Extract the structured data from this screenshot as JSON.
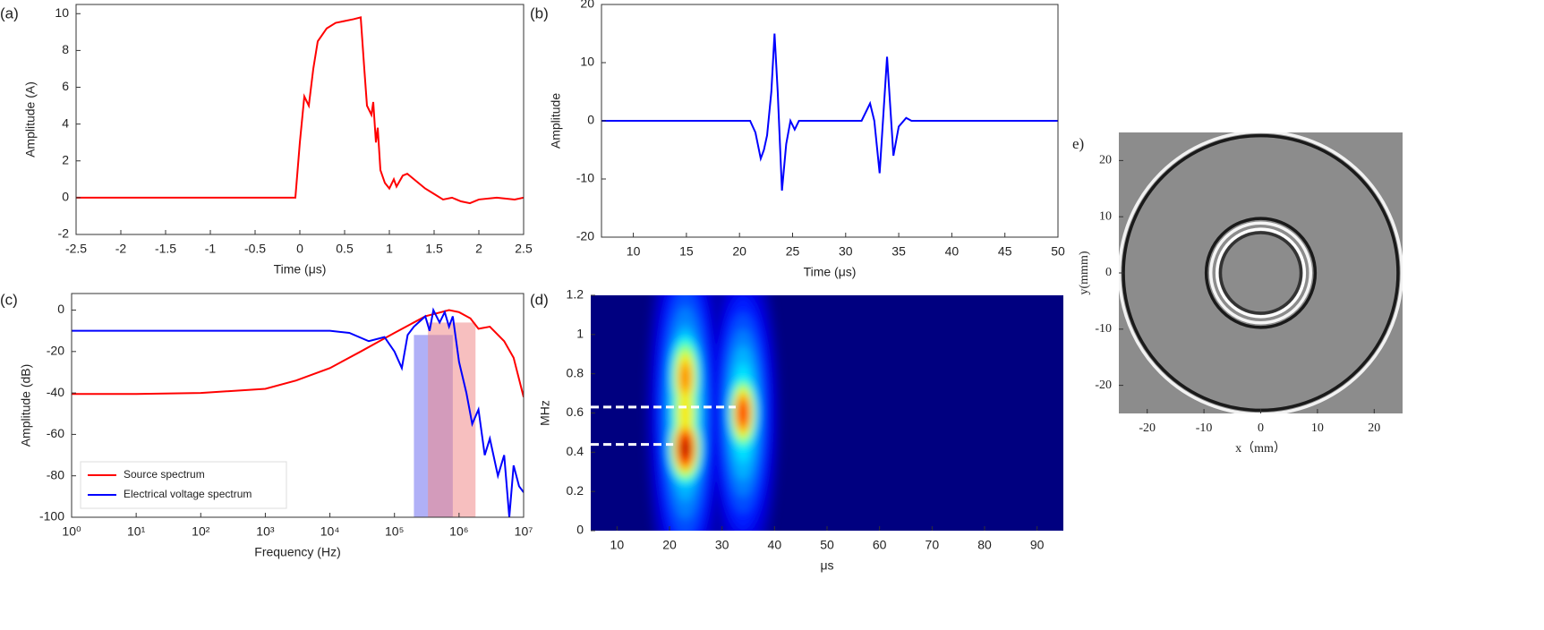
{
  "chart_data": [
    {
      "type": "line",
      "label": "(a)",
      "xlabel": "Time (μs)",
      "ylabel": "Amplitude (A)",
      "xlim": [
        -2.5,
        2.5
      ],
      "ylim": [
        -2,
        10.5
      ],
      "xticks": [
        -2.5,
        -2,
        -1.5,
        -1,
        -0.5,
        0,
        0.5,
        1,
        1.5,
        2,
        2.5
      ],
      "yticks": [
        -2,
        0,
        2,
        4,
        6,
        8,
        10
      ],
      "series": [
        {
          "color": "#ff0000",
          "x": [
            -2.5,
            -0.05,
            0,
            0.05,
            0.1,
            0.15,
            0.2,
            0.3,
            0.4,
            0.5,
            0.6,
            0.68,
            0.72,
            0.75,
            0.8,
            0.82,
            0.85,
            0.87,
            0.9,
            0.95,
            1.0,
            1.05,
            1.08,
            1.15,
            1.2,
            1.3,
            1.4,
            1.5,
            1.6,
            1.7,
            1.8,
            1.9,
            2.0,
            2.2,
            2.4,
            2.5
          ],
          "values": [
            0,
            0,
            3,
            5.5,
            5,
            7,
            8.5,
            9.2,
            9.5,
            9.6,
            9.7,
            9.8,
            7,
            5,
            4.5,
            5.2,
            3,
            3.8,
            1.5,
            0.8,
            0.5,
            1.0,
            0.6,
            1.2,
            1.3,
            0.9,
            0.5,
            0.2,
            -0.1,
            0,
            -0.2,
            -0.3,
            -0.1,
            0,
            -0.1,
            0
          ]
        }
      ]
    },
    {
      "type": "line",
      "label": "(b)",
      "xlabel": "Time (μs)",
      "ylabel": "Amplitude",
      "xlim": [
        7,
        50
      ],
      "ylim": [
        -20,
        20
      ],
      "xticks": [
        10,
        15,
        20,
        25,
        30,
        35,
        40,
        45,
        50
      ],
      "yticks": [
        -20,
        -10,
        0,
        10,
        20
      ],
      "series": [
        {
          "color": "#0000ff",
          "x": [
            7,
            21,
            21.5,
            22,
            22.3,
            22.6,
            23,
            23.3,
            23.6,
            24,
            24.4,
            24.8,
            25.2,
            25.6,
            26,
            31.5,
            32.3,
            32.7,
            33.2,
            33.9,
            34.5,
            35,
            35.7,
            36.2,
            50
          ],
          "values": [
            0,
            0,
            -2,
            -6.5,
            -5,
            -2.5,
            5,
            15,
            5,
            -12,
            -4,
            0,
            -1.5,
            0,
            0,
            0,
            3,
            0,
            -9,
            11,
            -6,
            -1,
            0.5,
            0,
            0
          ]
        }
      ]
    },
    {
      "type": "line",
      "label": "(c)",
      "xlabel": "Frequency (Hz)",
      "ylabel": "Amplitude (dB)",
      "xlog": true,
      "xlim": [
        1,
        10000000
      ],
      "ylim": [
        -100,
        8
      ],
      "xticks": [
        {
          "value": 1,
          "label": "10⁰"
        },
        {
          "value": 10,
          "label": "10¹"
        },
        {
          "value": 100,
          "label": "10²"
        },
        {
          "value": 1000,
          "label": "10³"
        },
        {
          "value": 10000,
          "label": "10⁴"
        },
        {
          "value": 100000,
          "label": "10⁵"
        },
        {
          "value": 1000000,
          "label": "10⁶"
        },
        {
          "value": 10000000,
          "label": "10⁷"
        }
      ],
      "yticks": [
        -100,
        -80,
        -60,
        -40,
        -20,
        0
      ],
      "bands": [
        {
          "x": [
            200000,
            800000
          ],
          "y": [
            -100,
            -12
          ],
          "color": "#7070f0"
        },
        {
          "x": [
            330000,
            1800000
          ],
          "y": [
            -100,
            -6
          ],
          "color": "#f08a8a"
        }
      ],
      "series": [
        {
          "name": "Source spectrum",
          "color": "#ff0000",
          "x": [
            1,
            10,
            100,
            1000,
            3000,
            10000,
            30000,
            100000,
            300000,
            700000,
            1000000,
            1500000,
            2000000,
            3000000,
            5000000,
            7000000,
            10000000
          ],
          "values": [
            -40.5,
            -40.5,
            -40,
            -38,
            -34,
            -28,
            -20,
            -11,
            -3,
            0,
            -1,
            -4,
            -9,
            -8,
            -15,
            -23,
            -42
          ]
        },
        {
          "name": "Electrical voltage spectrum",
          "color": "#0000ff",
          "x": [
            1,
            10000,
            20000,
            40000,
            70000,
            100000,
            130000,
            160000,
            200000,
            300000,
            350000,
            400000,
            500000,
            600000,
            700000,
            800000,
            1000000,
            1300000,
            1600000,
            2000000,
            2500000,
            3000000,
            4000000,
            5000000,
            6000000,
            7000000,
            8500000,
            10000000
          ],
          "values": [
            -10,
            -10,
            -11,
            -15,
            -13,
            -20,
            -28,
            -12,
            -8,
            -3,
            -10,
            0,
            -6,
            -1,
            -8,
            -3,
            -25,
            -40,
            -55,
            -48,
            -70,
            -62,
            -80,
            -70,
            -100,
            -75,
            -85,
            -88
          ]
        }
      ]
    },
    {
      "type": "heatmap",
      "label": "(d)",
      "xlabel": "μs",
      "ylabel": "MHz",
      "xlim": [
        5,
        95
      ],
      "ylim": [
        0,
        1.2
      ],
      "xticks": [
        10,
        20,
        30,
        40,
        50,
        60,
        70,
        80,
        90
      ],
      "yticks": [
        0,
        0.2,
        0.4,
        0.6,
        0.8,
        1,
        1.2
      ],
      "peaks": [
        {
          "x": 23,
          "y": 0.6,
          "z": 0.45,
          "sx": 3.6,
          "sy": 0.5
        },
        {
          "x": 34,
          "y": 0.6,
          "z": 0.42,
          "sx": 3.4,
          "sy": 0.42
        },
        {
          "x": 23,
          "y": 0.6,
          "z": 0.7,
          "sx": 2.3,
          "sy": 0.22
        },
        {
          "x": 23,
          "y": 0.78,
          "z": 0.8,
          "sx": 2.2,
          "sy": 0.17
        },
        {
          "x": 23,
          "y": 0.42,
          "z": 1.0,
          "sx": 2.2,
          "sy": 0.13
        },
        {
          "x": 34,
          "y": 0.6,
          "z": 0.9,
          "sx": 2.0,
          "sy": 0.14
        }
      ],
      "hlines": [
        {
          "y": 0.63,
          "x": [
            5,
            32.6
          ]
        },
        {
          "y": 0.44,
          "x": [
            5,
            20.7
          ]
        }
      ]
    },
    {
      "type": "image",
      "label": "e)",
      "xlabel": "x（mm）",
      "ylabel": "y(mmm)",
      "xlim": [
        -25,
        25
      ],
      "ylim": [
        -25,
        25
      ],
      "xticks": [
        -20,
        -10,
        0,
        10,
        20
      ],
      "yticks": [
        20,
        10,
        0,
        -10,
        -20
      ],
      "rings": [
        {
          "r": 24.9,
          "color": "#f2f2f2"
        },
        {
          "r": 24.2,
          "color": "#1a1a1a"
        },
        {
          "r": 9.6,
          "color": "#1a1a1a"
        },
        {
          "r": 8.8,
          "color": "#f5f5f5"
        },
        {
          "r": 7.7,
          "color": "#ffffff"
        },
        {
          "r": 7.1,
          "color": "#333333"
        }
      ]
    }
  ]
}
